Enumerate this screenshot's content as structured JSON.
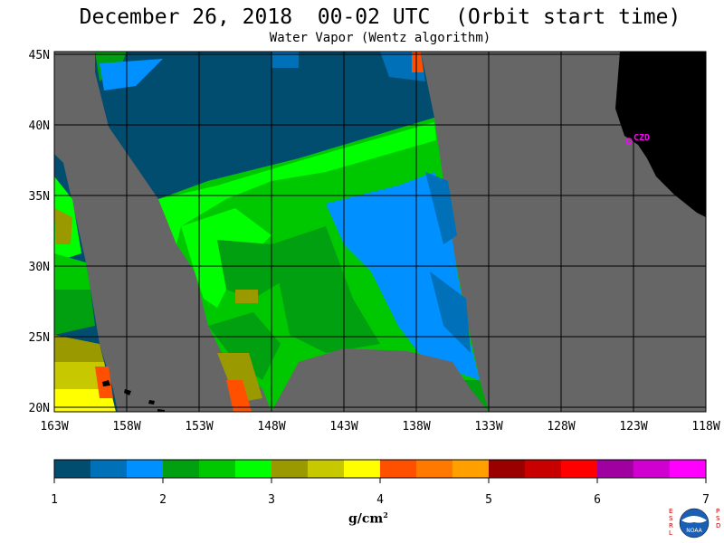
{
  "title": "December 26, 2018  00-02 UTC  (Orbit start time)",
  "subtitle": "Water Vapor (Wentz algorithm)",
  "map": {
    "lat_labels": [
      "45N",
      "40N",
      "35N",
      "30N",
      "25N",
      "20N"
    ],
    "lon_labels": [
      "163W",
      "158W",
      "153W",
      "148W",
      "143W",
      "138W",
      "133W",
      "128W",
      "123W",
      "118W"
    ],
    "station_label": "CZD",
    "land_color": "#000000",
    "nodata_color": "#666666",
    "grid_color": "#000000"
  },
  "colorbar": {
    "colors": [
      "#004d70",
      "#0070b8",
      "#0090ff",
      "#00a010",
      "#00c800",
      "#00ff00",
      "#9a9a00",
      "#c8c800",
      "#ffff00",
      "#ff5000",
      "#ff7800",
      "#ffa000",
      "#9a0000",
      "#c80000",
      "#ff0000",
      "#a000a0",
      "#d000d0",
      "#ff00ff"
    ],
    "tick_labels": [
      "1",
      "2",
      "3",
      "4",
      "5",
      "6",
      "7"
    ],
    "unit": "g/cm",
    "unit_power": "2"
  },
  "logo": {
    "left_text": "ESRL",
    "right_text": "PSD",
    "center_text": "NOAA"
  }
}
